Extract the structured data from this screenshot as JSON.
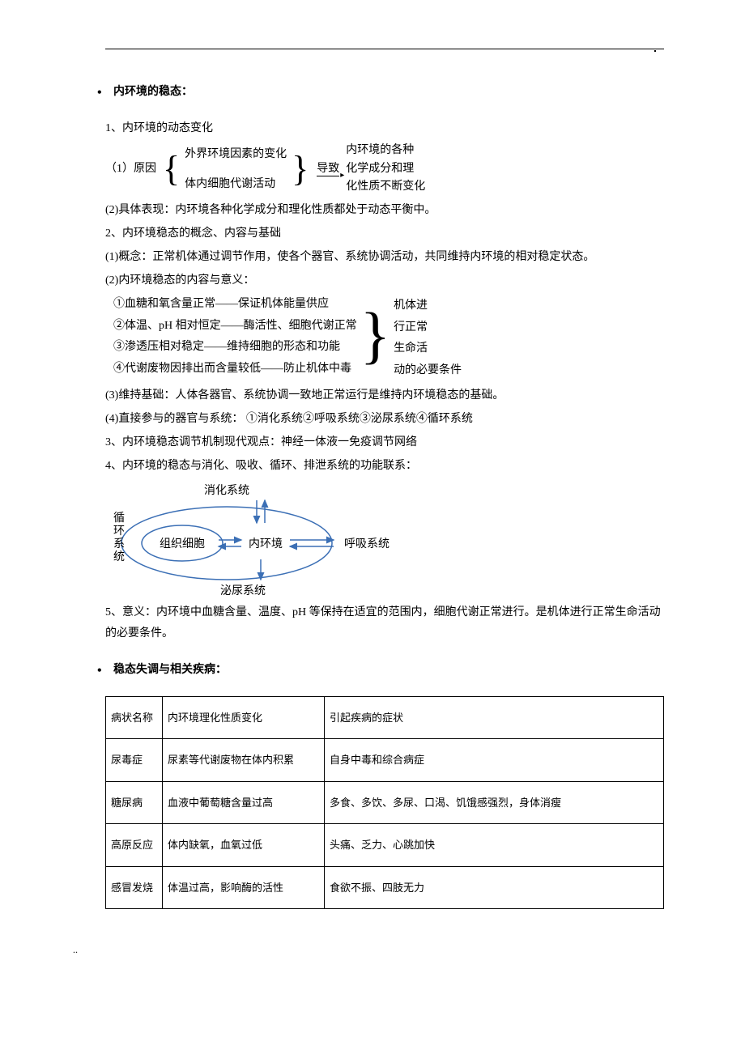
{
  "section1": {
    "title": "内环境的稳态：",
    "p1": "1、内环境的动态变化",
    "diagram1": {
      "label": "（1）原因",
      "cause1": "外界环境因素的变化",
      "cause2": "体内细胞代谢活动",
      "arrow": "导致",
      "result1": "内环境的各种",
      "result2": "化学成分和理",
      "result3": "化性质不断变化"
    },
    "p2": "(2)具体表现：内环境各种化学成分和理化性质都处于动态平衡中。",
    "p3": "2、内环境稳态的概念、内容与基础",
    "p4": "(1)概念：正常机体通过调节作用，使各个器官、系统协调活动，共同维持内环境的相对稳定状态。",
    "p5": "(2)内环境稳态的内容与意义：",
    "diagram2": {
      "item1": "①血糖和氧含量正常――保证机体能量供应",
      "item2": "②体温、pH 相对恒定――酶活性、细胞代谢正常",
      "item3": "③渗透压相对稳定――维持细胞的形态和功能",
      "item4": "④代谢废物因排出而含量较低――防止机体中毒",
      "right1": "机体进",
      "right2": "行正常",
      "right3": "生命活",
      "right4": "动的必要条件"
    },
    "p6": "(3)维持基础：人体各器官、系统协调一致地正常运行是维持内环境稳态的基础。",
    "p7": "(4)直接参与的器官与系统： ①消化系统②呼吸系统③泌尿系统④循环系统",
    "p8": "3、内环境稳态调节机制现代观点：神经一体液一免疫调节网络",
    "p9": "4、内环境的稳态与消化、吸收、循环、排泄系统的功能联系：",
    "flow": {
      "top": "消化系统",
      "left_vert": "循环系统",
      "center_left": "组织细胞",
      "center": "内环境",
      "right": "呼吸系统",
      "bottom": "泌尿系统",
      "arrow_color": "#3b6fb5",
      "ellipse_color": "#3b6fb5"
    },
    "p10": "5、意义：内环境中血糖含量、温度、pH 等保持在适宜的范围内，细胞代谢正常进行。是机体进行正常生命活动的必要条件。"
  },
  "section2": {
    "title": "稳态失调与相关疾病：",
    "table": {
      "headers": [
        "病状名称",
        "内环境理化性质变化",
        "引起疾病的症状"
      ],
      "rows": [
        [
          "尿毒症",
          "尿素等代谢废物在体内积累",
          "自身中毒和综合病症"
        ],
        [
          "糖尿病",
          "血液中葡萄糖含量过高",
          "多食、多饮、多尿、口渴、饥饿感强烈，身体消瘦"
        ],
        [
          "高原反应",
          "体内缺氧，血氧过低",
          "头痛、乏力、心跳加快"
        ],
        [
          "感冒发烧",
          "体温过高，影响酶的活性",
          "食欲不振、四肢无力"
        ]
      ]
    }
  },
  "footer": ".."
}
